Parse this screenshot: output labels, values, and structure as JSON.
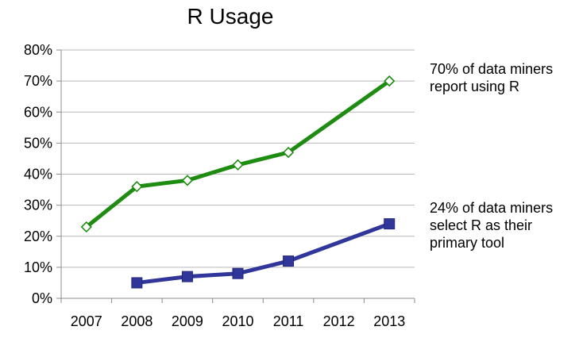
{
  "chart_data": {
    "type": "line",
    "title": "R Usage",
    "xlabel": "",
    "ylabel": "",
    "categories": [
      "2007",
      "2008",
      "2009",
      "2010",
      "2011",
      "2012",
      "2013"
    ],
    "yticks": [
      "0%",
      "10%",
      "20%",
      "30%",
      "40%",
      "50%",
      "60%",
      "70%",
      "80%"
    ],
    "ylim": [
      0,
      80
    ],
    "grid": true,
    "legend": "none",
    "series": [
      {
        "values": [
          23,
          36,
          38,
          43,
          47,
          null,
          70
        ],
        "color": "#1e8c10",
        "marker": "open-diamond"
      },
      {
        "values": [
          null,
          5,
          7,
          8,
          12,
          null,
          24
        ],
        "color": "#31369a",
        "marker": "filled-square"
      }
    ],
    "annotations": [
      {
        "lines": [
          "70% of data miners",
          "report using R"
        ]
      },
      {
        "lines": [
          "24% of data miners",
          "select R as their",
          "primary tool"
        ]
      }
    ]
  }
}
